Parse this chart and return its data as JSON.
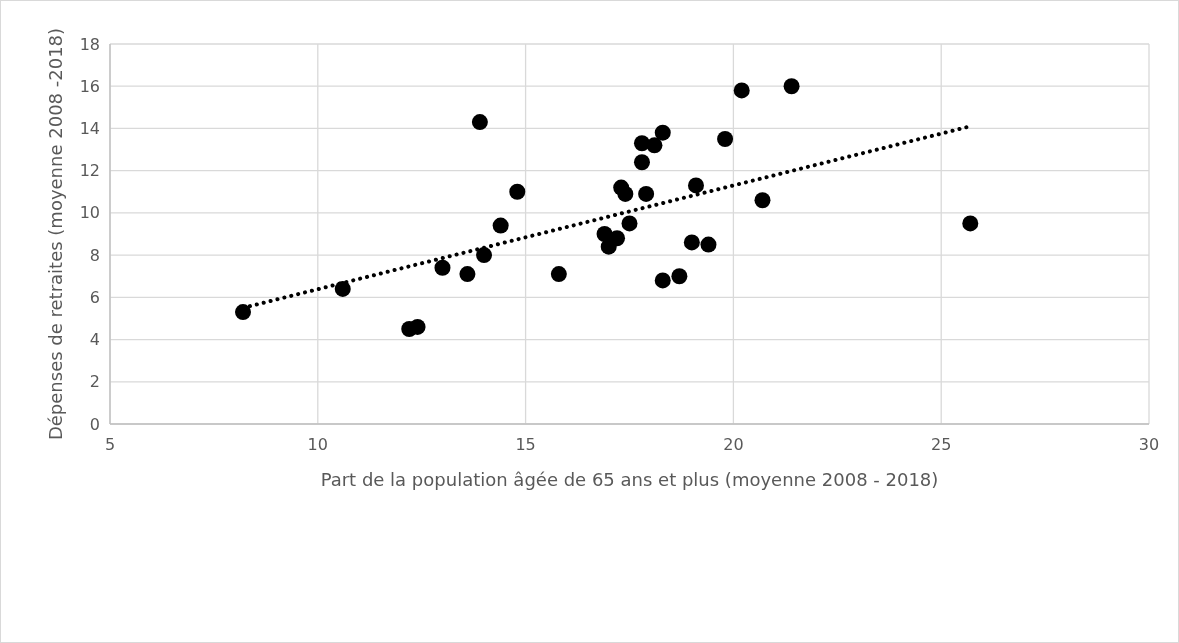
{
  "chart_data": {
    "type": "scatter",
    "xlabel": "Part de la population âgée de 65 ans et plus (moyenne 2008 - 2018)",
    "ylabel": "Dépenses de retraites (moyenne 2008 -2018)",
    "xlim": [
      5,
      30
    ],
    "xticks": [
      5,
      10,
      15,
      20,
      25,
      30
    ],
    "ylim": [
      0,
      18
    ],
    "yticks": [
      0,
      2,
      4,
      6,
      8,
      10,
      12,
      14,
      16,
      18
    ],
    "grid": true,
    "series": [
      {
        "color": "#000000",
        "marker": "circle",
        "x": [
          8.2,
          10.6,
          12.2,
          12.4,
          13.0,
          13.6,
          13.9,
          14.0,
          14.4,
          14.8,
          15.8,
          16.9,
          17.0,
          17.2,
          17.3,
          17.4,
          17.5,
          17.8,
          17.8,
          17.9,
          18.1,
          18.3,
          18.3,
          18.7,
          19.0,
          19.1,
          19.4,
          19.8,
          20.2,
          20.7,
          21.4,
          25.7
        ],
        "values": [
          5.3,
          6.4,
          4.5,
          4.6,
          7.4,
          7.1,
          14.3,
          8.0,
          9.4,
          11.0,
          7.1,
          9.0,
          8.4,
          8.8,
          11.2,
          10.9,
          9.5,
          13.3,
          12.4,
          10.9,
          13.2,
          13.8,
          6.8,
          7.0,
          8.6,
          11.3,
          8.5,
          13.5,
          15.8,
          10.6,
          16.0,
          9.5
        ]
      },
      {
        "type": "line",
        "color": "#000000",
        "marker": "none",
        "line_style": "dotted",
        "x": [
          8.2,
          25.7
        ],
        "values": [
          5.5,
          14.1
        ]
      }
    ]
  }
}
